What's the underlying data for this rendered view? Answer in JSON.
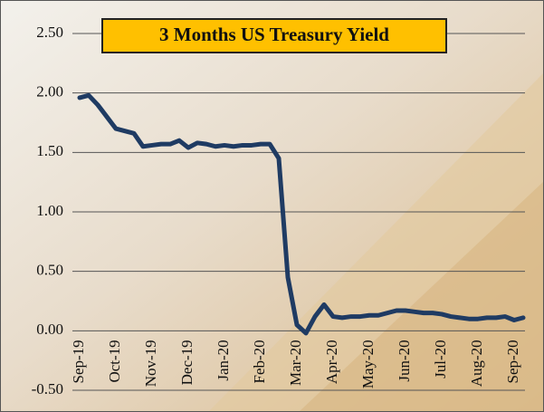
{
  "chart_data": {
    "type": "line",
    "title": "3 Months  US Treasury Yield",
    "categories": [
      "Sep-19",
      null,
      null,
      null,
      "Oct-19",
      null,
      null,
      null,
      "Nov-19",
      null,
      null,
      null,
      "Dec-19",
      null,
      null,
      null,
      "Jan-20",
      null,
      null,
      null,
      "Feb-20",
      null,
      null,
      null,
      "Mar-20",
      null,
      null,
      null,
      "Apr-20",
      null,
      null,
      null,
      "May-20",
      null,
      null,
      null,
      "Jun-20",
      null,
      null,
      null,
      "Jul-20",
      null,
      null,
      null,
      "Aug-20",
      null,
      null,
      null,
      "Sep-20",
      null
    ],
    "series": [
      {
        "name": "3 Months US Treasury Yield",
        "color": "#1f3b63",
        "values": [
          1.96,
          1.98,
          1.9,
          1.8,
          1.7,
          1.68,
          1.66,
          1.55,
          1.56,
          1.57,
          1.57,
          1.6,
          1.54,
          1.58,
          1.57,
          1.55,
          1.56,
          1.55,
          1.56,
          1.56,
          1.57,
          1.57,
          1.45,
          0.45,
          0.05,
          -0.02,
          0.12,
          0.22,
          0.12,
          0.11,
          0.12,
          0.12,
          0.13,
          0.13,
          0.15,
          0.17,
          0.17,
          0.16,
          0.15,
          0.15,
          0.14,
          0.12,
          0.11,
          0.1,
          0.1,
          0.11,
          0.11,
          0.12,
          0.09,
          0.11
        ]
      }
    ],
    "ylim": [
      -0.5,
      2.5
    ],
    "yticks": [
      {
        "value": -0.5,
        "label": "-0.50"
      },
      {
        "value": 0,
        "label": "0.00"
      },
      {
        "value": 0.5,
        "label": "0.50"
      },
      {
        "value": 1,
        "label": "1.00"
      },
      {
        "value": 1.5,
        "label": "1.50"
      },
      {
        "value": 2,
        "label": "2.00"
      },
      {
        "value": 2.5,
        "label": "2.50"
      }
    ],
    "grid": true
  }
}
